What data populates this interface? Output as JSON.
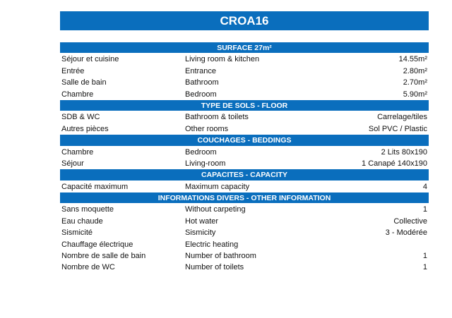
{
  "title": "CROA16",
  "accent_color": "#0a6ebd",
  "sections": [
    {
      "header": "SURFACE 27m²",
      "rows": [
        [
          "Séjour et cuisine",
          "Living room & kitchen",
          "14.55m²"
        ],
        [
          "Entrée",
          "Entrance",
          "2.80m²"
        ],
        [
          "Salle de bain",
          "Bathroom",
          "2.70m²"
        ],
        [
          "Chambre",
          "Bedroom",
          "5.90m²"
        ]
      ]
    },
    {
      "header": "TYPE DE SOLS - FLOOR",
      "rows": [
        [
          "SDB & WC",
          "Bathroom & toilets",
          "Carrelage/tiles"
        ],
        [
          "Autres pièces",
          "Other rooms",
          "Sol PVC / Plastic"
        ]
      ]
    },
    {
      "header": "COUCHAGES - BEDDINGS",
      "rows": [
        [
          "Chambre",
          "Bedroom",
          "2 Lits 80x190"
        ],
        [
          "Séjour",
          "Living-room",
          "1 Canapé 140x190"
        ]
      ]
    },
    {
      "header": "CAPACITES - CAPACITY",
      "rows": [
        [
          "Capacité maximum",
          "Maximum capacity",
          "4"
        ]
      ]
    },
    {
      "header": "INFORMATIONS DIVERS - OTHER INFORMATION",
      "rows": [
        [
          "Sans moquette",
          "Without carpeting",
          "1"
        ],
        [
          "Eau chaude",
          "Hot water",
          "Collective"
        ],
        [
          "Sismicité",
          "Sismicity",
          "3 - Modérée"
        ],
        [
          "Chauffage électrique",
          "Electric heating",
          ""
        ],
        [
          "Nombre de salle de bain",
          "Number of bathroom",
          "1"
        ],
        [
          "Nombre de WC",
          "Number of toilets",
          "1"
        ]
      ]
    }
  ]
}
